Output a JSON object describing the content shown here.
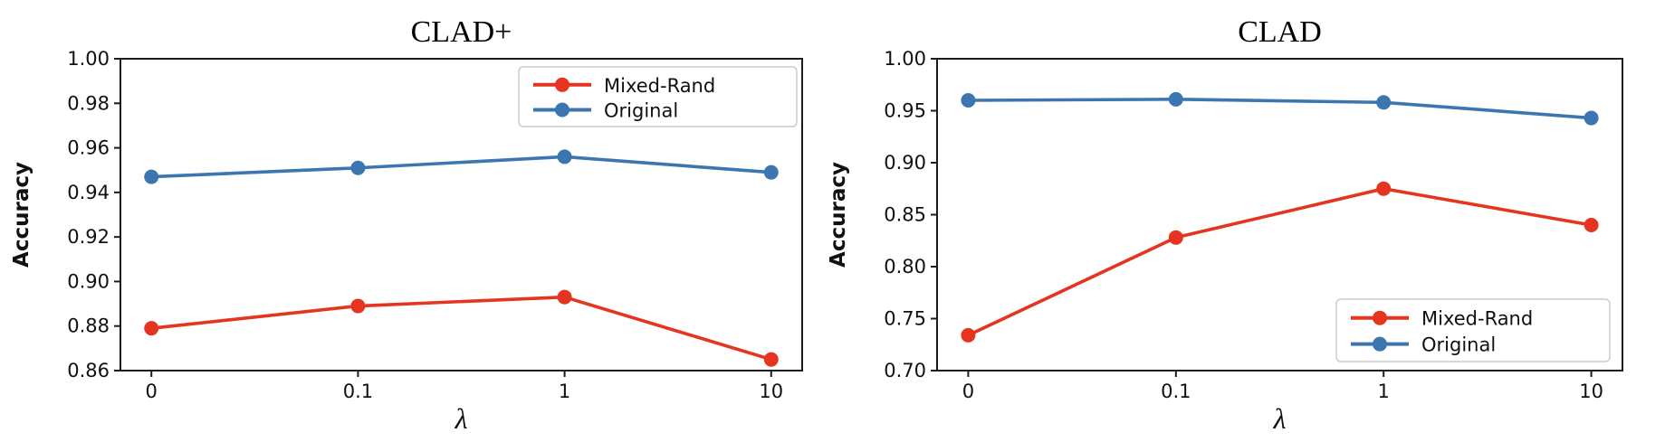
{
  "figure": {
    "background": "#ffffff",
    "text_color": "#111111",
    "spine_color": "#1c1c1c",
    "accent_red": "#e5341f",
    "accent_blue": "#3b76b0"
  },
  "chart_data": [
    {
      "type": "line",
      "title": "CLAD+",
      "xlabel": "λ",
      "ylabel": "Accuracy",
      "categories": [
        "0",
        "0.1",
        "1",
        "10"
      ],
      "ylim": [
        0.86,
        1.0
      ],
      "y_ticks": [
        0.86,
        0.88,
        0.9,
        0.92,
        0.94,
        0.96,
        0.98,
        1.0
      ],
      "y_tick_labels": [
        "0.86",
        "0.88",
        "0.90",
        "0.92",
        "0.94",
        "0.96",
        "0.98",
        "1.00"
      ],
      "grid": false,
      "legend_position": "upper-right",
      "legend_entries": [
        "Mixed-Rand",
        "Original"
      ],
      "series": [
        {
          "name": "Mixed-Rand",
          "color": "#e5341f",
          "marker": "circle",
          "values": [
            0.879,
            0.889,
            0.893,
            0.865
          ]
        },
        {
          "name": "Original",
          "color": "#3b76b0",
          "marker": "circle",
          "values": [
            0.947,
            0.951,
            0.956,
            0.949
          ]
        }
      ]
    },
    {
      "type": "line",
      "title": "CLAD",
      "xlabel": "λ",
      "ylabel": "Accuracy",
      "categories": [
        "0",
        "0.1",
        "1",
        "10"
      ],
      "ylim": [
        0.7,
        1.0
      ],
      "y_ticks": [
        0.7,
        0.75,
        0.8,
        0.85,
        0.9,
        0.95,
        1.0
      ],
      "y_tick_labels": [
        "0.70",
        "0.75",
        "0.80",
        "0.85",
        "0.90",
        "0.95",
        "1.00"
      ],
      "grid": false,
      "legend_position": "lower-right",
      "legend_entries": [
        "Mixed-Rand",
        "Original"
      ],
      "series": [
        {
          "name": "Mixed-Rand",
          "color": "#e5341f",
          "marker": "circle",
          "values": [
            0.734,
            0.828,
            0.875,
            0.84
          ]
        },
        {
          "name": "Original",
          "color": "#3b76b0",
          "marker": "circle",
          "values": [
            0.96,
            0.961,
            0.958,
            0.943
          ]
        }
      ]
    }
  ]
}
